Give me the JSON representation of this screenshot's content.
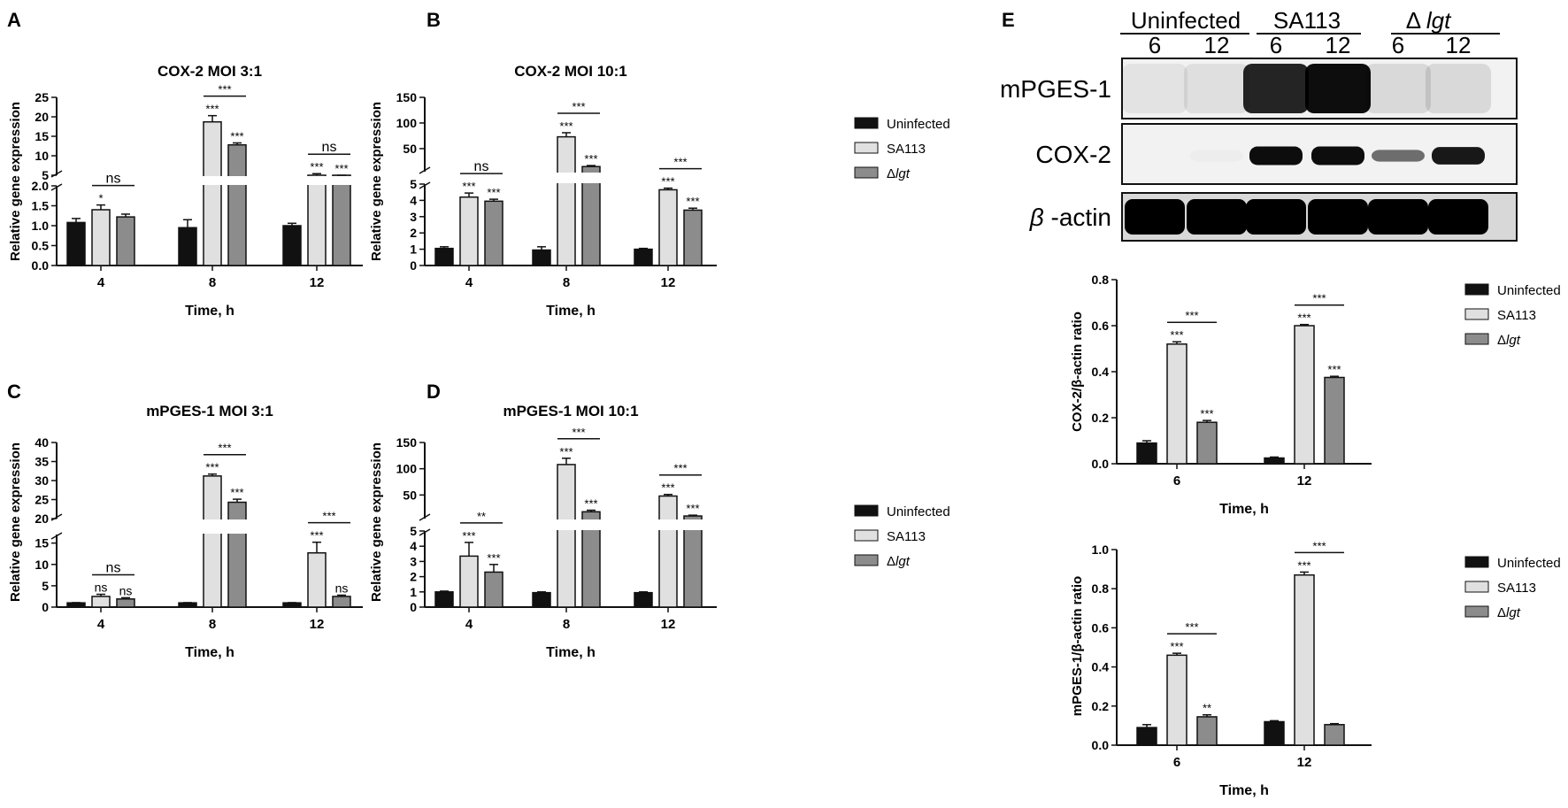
{
  "legend_entries": [
    "Uninfected",
    "SA113",
    "Δlgt"
  ],
  "colors": {
    "uninfected": "#111111",
    "sa113": "#e0e0e0",
    "lgt": "#8c8c8c",
    "axis": "#111111"
  },
  "chart_data": [
    {
      "panel": "A",
      "type": "bar",
      "title": "COX-2 MOI 3:1",
      "xlabel": "Time, h",
      "ylabel": "Relative gene expression",
      "categories": [
        "4",
        "8",
        "12"
      ],
      "y_axis": "broken",
      "ylim_lower": [
        0,
        2.0
      ],
      "ylim_upper": [
        5,
        25
      ],
      "yticks_lower": [
        "0.0",
        "0.5",
        "1.0",
        "1.5",
        "2.0"
      ],
      "yticks_upper": [
        "5",
        "10",
        "15",
        "20",
        "25"
      ],
      "series": [
        {
          "name": "Uninfected",
          "values": [
            1.08,
            0.95,
            1.0
          ],
          "errors": [
            0.1,
            0.2,
            0.06
          ]
        },
        {
          "name": "SA113",
          "values": [
            1.4,
            18.7,
            5.0
          ],
          "errors": [
            0.12,
            1.6,
            0.4
          ]
        },
        {
          "name": "Δlgt",
          "values": [
            1.22,
            12.8,
            3.8
          ],
          "errors": [
            0.07,
            0.5,
            0.3
          ]
        }
      ],
      "stars": [
        [
          "",
          "",
          ""
        ],
        [
          "*",
          "***",
          "***"
        ],
        [
          "",
          "***",
          "***"
        ]
      ],
      "brackets": [
        [
          "4",
          "ns"
        ],
        [
          "8",
          "***"
        ],
        [
          "12",
          "ns"
        ]
      ],
      "legend": "none"
    },
    {
      "panel": "B",
      "type": "bar",
      "title": "COX-2 MOI 10:1",
      "xlabel": "Time, h",
      "ylabel": "Relative gene expression",
      "categories": [
        "4",
        "8",
        "12"
      ],
      "y_axis": "broken",
      "ylim_lower": [
        0,
        5
      ],
      "ylim_upper": [
        5,
        150
      ],
      "yticks_lower": [
        "0",
        "1",
        "2",
        "3",
        "4",
        "5"
      ],
      "yticks_upper": [
        "50",
        "100",
        "150"
      ],
      "series": [
        {
          "name": "Uninfected",
          "values": [
            1.05,
            0.95,
            1.0
          ],
          "errors": [
            0.1,
            0.2,
            0.05
          ]
        },
        {
          "name": "SA113",
          "values": [
            4.2,
            73,
            4.65
          ],
          "errors": [
            0.25,
            8,
            0.1
          ]
        },
        {
          "name": "Δlgt",
          "values": [
            3.95,
            15,
            3.4
          ],
          "errors": [
            0.12,
            2,
            0.12
          ]
        }
      ],
      "stars": [
        [
          "",
          "",
          ""
        ],
        [
          "***",
          "***",
          "***"
        ],
        [
          "***",
          "***",
          "***"
        ]
      ],
      "brackets": [
        [
          "4",
          "ns"
        ],
        [
          "8",
          "***"
        ],
        [
          "12",
          "***"
        ]
      ],
      "legend": "right"
    },
    {
      "panel": "C",
      "type": "bar",
      "title": "mPGES-1 MOI 3:1",
      "xlabel": "Time, h",
      "ylabel": "Relative gene expression",
      "categories": [
        "4",
        "8",
        "12"
      ],
      "y_axis": "broken",
      "ylim_lower": [
        0,
        17
      ],
      "ylim_upper": [
        20,
        40
      ],
      "yticks_lower": [
        "0",
        "5",
        "10",
        "15"
      ],
      "yticks_upper": [
        "20",
        "25",
        "30",
        "35",
        "40"
      ],
      "series": [
        {
          "name": "Uninfected",
          "values": [
            1.0,
            1.0,
            1.0
          ],
          "errors": [
            0.05,
            0.05,
            0.05
          ]
        },
        {
          "name": "SA113",
          "values": [
            2.5,
            31.2,
            12.7
          ],
          "errors": [
            0.5,
            0.5,
            2.5
          ]
        },
        {
          "name": "Δlgt",
          "values": [
            1.9,
            24.3,
            2.5
          ],
          "errors": [
            0.3,
            0.8,
            0.3
          ]
        }
      ],
      "stars": [
        [
          "",
          "",
          ""
        ],
        [
          "ns",
          "***",
          "***"
        ],
        [
          "ns",
          "***",
          "ns"
        ]
      ],
      "brackets": [
        [
          "4",
          "ns"
        ],
        [
          "8",
          "***"
        ],
        [
          "12",
          "***"
        ]
      ],
      "legend": "none"
    },
    {
      "panel": "D",
      "type": "bar",
      "title": "mPGES-1 MOI 10:1",
      "xlabel": "Time, h",
      "ylabel": "Relative gene expression",
      "categories": [
        "4",
        "8",
        "12"
      ],
      "y_axis": "broken",
      "ylim_lower": [
        0,
        5
      ],
      "ylim_upper": [
        5,
        150
      ],
      "yticks_lower": [
        "0",
        "1",
        "2",
        "3",
        "4",
        "5"
      ],
      "yticks_upper": [
        "50",
        "100",
        "150"
      ],
      "series": [
        {
          "name": "Uninfected",
          "values": [
            1.0,
            0.95,
            0.95
          ],
          "errors": [
            0.05,
            0.05,
            0.05
          ]
        },
        {
          "name": "SA113",
          "values": [
            3.35,
            108,
            48
          ],
          "errors": [
            0.9,
            12,
            3
          ]
        },
        {
          "name": "Δlgt",
          "values": [
            2.3,
            18,
            10
          ],
          "errors": [
            0.5,
            3,
            1.5
          ]
        }
      ],
      "stars": [
        [
          "",
          "",
          ""
        ],
        [
          "***",
          "***",
          "***"
        ],
        [
          "***",
          "***",
          "***"
        ]
      ],
      "brackets": [
        [
          "4",
          "**"
        ],
        [
          "8",
          "***"
        ],
        [
          "12",
          "***"
        ]
      ],
      "legend": "right"
    },
    {
      "panel": "E1",
      "type": "bar",
      "title": "",
      "xlabel": "Time, h",
      "ylabel": "COX-2/β-actin ratio",
      "categories": [
        "6",
        "12"
      ],
      "y_axis": "linear",
      "ylim": [
        0,
        0.8
      ],
      "yticks": [
        "0.0",
        "0.2",
        "0.4",
        "0.6",
        "0.8"
      ],
      "series": [
        {
          "name": "Uninfected",
          "values": [
            0.09,
            0.025
          ],
          "errors": [
            0.01,
            0.004
          ]
        },
        {
          "name": "SA113",
          "values": [
            0.52,
            0.6
          ],
          "errors": [
            0.01,
            0.005
          ]
        },
        {
          "name": "Δlgt",
          "values": [
            0.18,
            0.375
          ],
          "errors": [
            0.008,
            0.005
          ]
        }
      ],
      "stars": [
        [
          "",
          ""
        ],
        [
          "***",
          "***"
        ],
        [
          "***",
          "***"
        ]
      ],
      "brackets": [
        [
          "6",
          "***"
        ],
        [
          "12",
          "***"
        ]
      ],
      "legend": "right"
    },
    {
      "panel": "E2",
      "type": "bar",
      "title": "",
      "xlabel": "Time, h",
      "ylabel": "mPGES-1/β-actin ratio",
      "categories": [
        "6",
        "12"
      ],
      "y_axis": "linear",
      "ylim": [
        0,
        1.0
      ],
      "yticks": [
        "0.0",
        "0.2",
        "0.4",
        "0.6",
        "0.8",
        "1.0"
      ],
      "series": [
        {
          "name": "Uninfected",
          "values": [
            0.09,
            0.12
          ],
          "errors": [
            0.015,
            0.005
          ]
        },
        {
          "name": "SA113",
          "values": [
            0.46,
            0.87
          ],
          "errors": [
            0.01,
            0.015
          ]
        },
        {
          "name": "Δlgt",
          "values": [
            0.145,
            0.105
          ],
          "errors": [
            0.01,
            0.005
          ]
        }
      ],
      "stars": [
        [
          "",
          ""
        ],
        [
          "***",
          "***"
        ],
        [
          "**",
          ""
        ]
      ],
      "brackets": [
        [
          "6",
          "***"
        ],
        [
          "12",
          "***"
        ]
      ],
      "legend": "right"
    }
  ],
  "western_blot": {
    "groups": [
      "Uninfected",
      "SA113",
      "Δ lgt"
    ],
    "lane_labels": [
      "6",
      "12",
      "6",
      "12",
      "6",
      "12"
    ],
    "rows": [
      {
        "label": "mPGES-1",
        "intensity": [
          0.06,
          0.08,
          0.85,
          0.95,
          0.1,
          0.1
        ]
      },
      {
        "label": "COX-2",
        "intensity": [
          0.0,
          0.02,
          0.95,
          0.95,
          0.55,
          0.9
        ]
      },
      {
        "label": "β -actin",
        "intensity": [
          1,
          1,
          1,
          1,
          1,
          1
        ]
      }
    ]
  }
}
